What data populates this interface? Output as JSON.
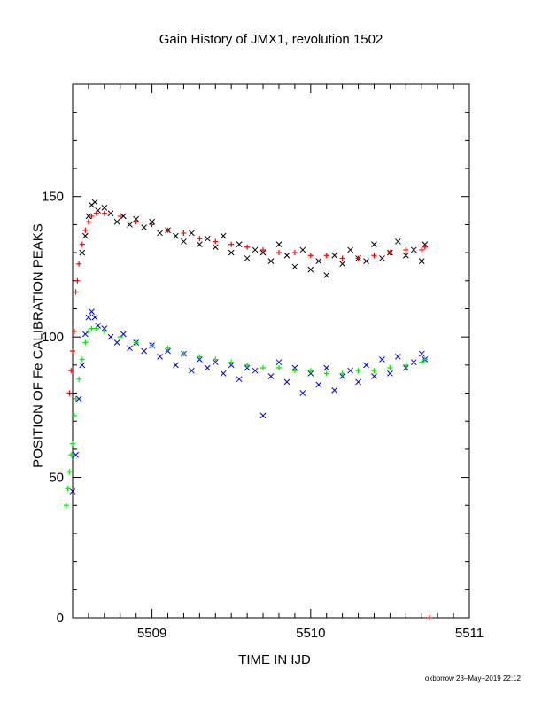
{
  "chart_data": {
    "type": "scatter",
    "title": "Gain History of JMX1, revolution 1502",
    "xlabel": "TIME IN IJD",
    "ylabel": "POSITION OF Fe CALIBRATION PEAKS",
    "xlim": [
      5508.5,
      5511
    ],
    "ylim": [
      0,
      190
    ],
    "x_ticks": [
      "5509",
      "5510",
      "5511"
    ],
    "y_ticks": [
      "0",
      "50",
      "100",
      "150"
    ],
    "grid": false,
    "footer": "oxborrow 23–May–2019 22:12",
    "series": [
      {
        "name": "",
        "marker": "x",
        "color": "#000000",
        "x": [
          5508.56,
          5508.58,
          5508.6,
          5508.62,
          5508.64,
          5508.66,
          5508.7,
          5508.74,
          5508.78,
          5508.82,
          5508.86,
          5508.9,
          5508.95,
          5509.0,
          5509.05,
          5509.1,
          5509.15,
          5509.2,
          5509.25,
          5509.3,
          5509.35,
          5509.4,
          5509.45,
          5509.5,
          5509.55,
          5509.6,
          5509.65,
          5509.7,
          5509.75,
          5509.8,
          5509.85,
          5509.9,
          5509.95,
          5510.0,
          5510.05,
          5510.1,
          5510.15,
          5510.2,
          5510.25,
          5510.3,
          5510.35,
          5510.4,
          5510.45,
          5510.5,
          5510.55,
          5510.6,
          5510.65,
          5510.7,
          5510.72
        ],
        "y": [
          130,
          136,
          143,
          147,
          148,
          145,
          146,
          144,
          141,
          143,
          140,
          142,
          139,
          141,
          137,
          138,
          136,
          134,
          137,
          133,
          135,
          132,
          136,
          130,
          133,
          128,
          131,
          130,
          127,
          133,
          129,
          125,
          131,
          124,
          127,
          122,
          129,
          126,
          131,
          128,
          127,
          133,
          128,
          130,
          134,
          129,
          131,
          127,
          133
        ]
      },
      {
        "name": "",
        "marker": "x",
        "color": "#0000dd",
        "x": [
          5508.5,
          5508.52,
          5508.54,
          5508.56,
          5508.58,
          5508.6,
          5508.62,
          5508.64,
          5508.66,
          5508.7,
          5508.74,
          5508.78,
          5508.82,
          5508.86,
          5508.9,
          5508.95,
          5509.0,
          5509.05,
          5509.1,
          5509.15,
          5509.2,
          5509.25,
          5509.3,
          5509.35,
          5509.4,
          5509.45,
          5509.5,
          5509.55,
          5509.6,
          5509.65,
          5509.7,
          5509.75,
          5509.8,
          5509.85,
          5509.9,
          5509.95,
          5510.0,
          5510.05,
          5510.1,
          5510.15,
          5510.2,
          5510.25,
          5510.3,
          5510.35,
          5510.4,
          5510.45,
          5510.5,
          5510.55,
          5510.6,
          5510.65,
          5510.7,
          5510.72
        ],
        "y": [
          45,
          58,
          78,
          90,
          101,
          107,
          109,
          107,
          104,
          103,
          100,
          98,
          101,
          96,
          98,
          95,
          97,
          93,
          95,
          90,
          94,
          88,
          92,
          89,
          91,
          87,
          90,
          85,
          89,
          88,
          72,
          86,
          91,
          84,
          89,
          80,
          87,
          83,
          89,
          81,
          86,
          88,
          84,
          90,
          86,
          92,
          87,
          93,
          89,
          91,
          94,
          92
        ]
      },
      {
        "name": "",
        "marker": "+",
        "color": "#ff0000",
        "x": [
          5508.48,
          5508.49,
          5508.5,
          5508.51,
          5508.52,
          5508.53,
          5508.54,
          5508.56,
          5508.58,
          5508.6,
          5508.62,
          5508.65,
          5508.7,
          5508.8,
          5508.9,
          5509.0,
          5509.1,
          5509.2,
          5509.3,
          5509.4,
          5509.5,
          5509.6,
          5509.7,
          5509.8,
          5509.9,
          5510.0,
          5510.1,
          5510.2,
          5510.3,
          5510.4,
          5510.5,
          5510.6,
          5510.7,
          5510.72,
          5510.75
        ],
        "y": [
          80,
          88,
          95,
          102,
          116,
          120,
          126,
          133,
          138,
          141,
          143,
          144,
          144,
          143,
          141,
          140,
          138,
          137,
          135,
          134,
          133,
          132,
          131,
          130,
          130,
          129,
          129,
          128,
          128,
          129,
          130,
          131,
          131,
          132,
          0
        ]
      },
      {
        "name": "",
        "marker": "+",
        "color": "#00ee00",
        "x": [
          5508.46,
          5508.47,
          5508.48,
          5508.49,
          5508.5,
          5508.51,
          5508.52,
          5508.54,
          5508.56,
          5508.58,
          5508.6,
          5508.62,
          5508.65,
          5508.7,
          5508.8,
          5508.9,
          5509.0,
          5509.1,
          5509.2,
          5509.3,
          5509.4,
          5509.5,
          5509.6,
          5509.7,
          5509.8,
          5509.9,
          5510.0,
          5510.1,
          5510.2,
          5510.3,
          5510.4,
          5510.5,
          5510.6,
          5510.7,
          5510.72
        ],
        "y": [
          40,
          46,
          52,
          58,
          62,
          72,
          78,
          85,
          92,
          98,
          102,
          103,
          103,
          102,
          100,
          98,
          97,
          96,
          94,
          93,
          92,
          91,
          90,
          89,
          89,
          88,
          88,
          87,
          87,
          88,
          88,
          89,
          90,
          91,
          92
        ]
      }
    ]
  }
}
